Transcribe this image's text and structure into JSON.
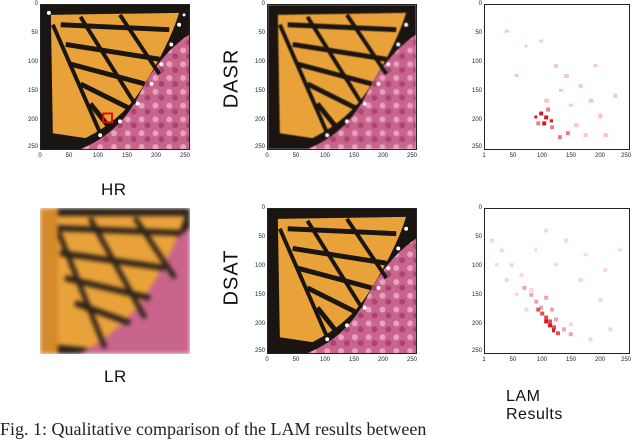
{
  "labels": {
    "hr": "HR",
    "lr": "LR",
    "row1": "DASR",
    "row2": "DSAT",
    "lam": "LAM Results"
  },
  "ticks": {
    "y": [
      "0",
      "50",
      "100",
      "150",
      "200",
      "250"
    ],
    "x": [
      "0",
      "50",
      "100",
      "150",
      "200",
      "250"
    ],
    "x_lam": [
      "1",
      "50",
      "100",
      "150",
      "200",
      "250"
    ]
  },
  "caption_fragment": "Fig. 1: Qualitative comparison of the LAM results between",
  "colors": {
    "wing_orange": "#e9a23a",
    "wing_black": "#1b1511",
    "flower_pink": "#c45a86",
    "lam_red": "#d8141e"
  }
}
